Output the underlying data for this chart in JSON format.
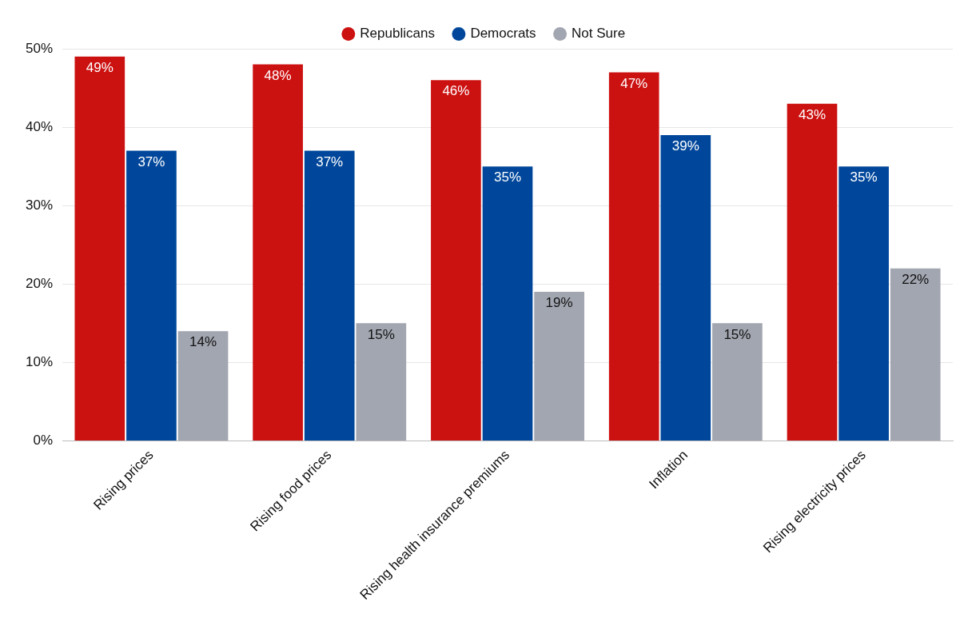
{
  "chart_data": {
    "type": "bar",
    "categories": [
      "Rising prices",
      "Rising food prices",
      "Rising health insurance premiums",
      "Inflation",
      "Rising electricity prices"
    ],
    "series": [
      {
        "name": "Republicans",
        "color": "#cc1111",
        "values": [
          49,
          48,
          46,
          47,
          43
        ],
        "value_labels": [
          "49%",
          "48%",
          "46%",
          "47%",
          "43%"
        ]
      },
      {
        "name": "Democrats",
        "color": "#00479b",
        "values": [
          37,
          37,
          35,
          39,
          35
        ],
        "value_labels": [
          "37%",
          "37%",
          "35%",
          "39%",
          "35%"
        ]
      },
      {
        "name": "Not Sure",
        "color": "#a2a6b0",
        "values": [
          14,
          15,
          19,
          15,
          22
        ],
        "value_labels": [
          "14%",
          "15%",
          "19%",
          "15%",
          "22%"
        ]
      }
    ],
    "ylim": [
      0,
      50
    ],
    "yticks": [
      {
        "value": 0,
        "label": "0%"
      },
      {
        "value": 10,
        "label": "10%"
      },
      {
        "value": 20,
        "label": "20%"
      },
      {
        "value": 30,
        "label": "30%"
      },
      {
        "value": 40,
        "label": "40%"
      },
      {
        "value": 50,
        "label": "50%"
      }
    ],
    "grid": "y",
    "legend": "top"
  }
}
